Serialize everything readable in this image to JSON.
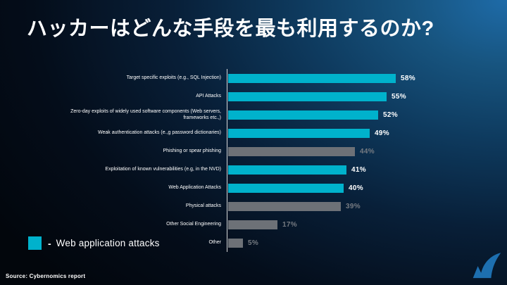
{
  "slide": {
    "title": "ハッカーはどんな手段を最も利用するのか?",
    "source": "Source: Cybernomics report",
    "legend": {
      "separator": "-",
      "label": "Web application attacks"
    },
    "logo": "barracuda-logo"
  },
  "colors": {
    "highlight_bar": "#00b2cc",
    "muted_bar": "#6d7177",
    "highlight_value_text": "#ffffff",
    "muted_value_text": "#767b82",
    "axis_line": "#d9d9d9",
    "logo_blue": "#1d6fb0"
  },
  "chart_data": {
    "type": "bar",
    "orientation": "horizontal",
    "title": "",
    "xlim": [
      0,
      100
    ],
    "grid": false,
    "legend_position": "bottom-left",
    "value_suffix": "%",
    "categories": [
      "Target specific exploits (e.g., SQL Injection)",
      "API Attacks",
      "Zero-day exploits of widely used software components (Web servers, frameworks etc.,)",
      "Weak authentication attacks (e.,g password dictionaries)",
      "Phishing or spear phishing",
      "Exploitation of known vulnerabilities (e.g, in the NVD)",
      "Web Application Attacks",
      "Physical attacks",
      "Other Social Engineering",
      "Other"
    ],
    "values": [
      58,
      55,
      52,
      49,
      44,
      41,
      40,
      39,
      17,
      5
    ],
    "highlighted": [
      true,
      true,
      true,
      true,
      false,
      true,
      true,
      false,
      false,
      false
    ]
  }
}
